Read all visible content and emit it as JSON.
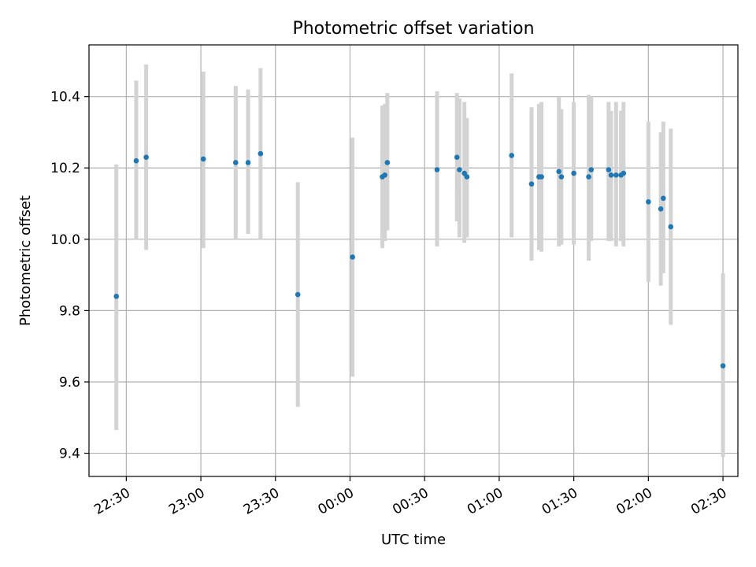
{
  "chart_data": {
    "type": "scatter",
    "title": "Photometric offset variation",
    "xlabel": "UTC time",
    "ylabel": "Photometric offset",
    "xlim": [
      "22:15",
      "02:36"
    ],
    "ylim": [
      9.335,
      10.545
    ],
    "x_ticks": [
      "22:30",
      "23:00",
      "23:30",
      "00:00",
      "00:30",
      "01:00",
      "01:30",
      "02:00",
      "02:30"
    ],
    "y_ticks": [
      "9.4",
      "9.6",
      "9.8",
      "10.0",
      "10.2",
      "10.4"
    ],
    "grid": true,
    "point_color": "#1f77b4",
    "error_color": "#d3d3d3",
    "series": [
      {
        "points": [
          {
            "x": "22:26",
            "y": 9.84,
            "lo": 9.465,
            "hi": 10.21
          },
          {
            "x": "22:34",
            "y": 10.22,
            "lo": 10.0,
            "hi": 10.445
          },
          {
            "x": "22:38",
            "y": 10.23,
            "lo": 9.97,
            "hi": 10.49
          },
          {
            "x": "23:01",
            "y": 10.225,
            "lo": 9.975,
            "hi": 10.47
          },
          {
            "x": "23:14",
            "y": 10.215,
            "lo": 10.0,
            "hi": 10.43
          },
          {
            "x": "23:19",
            "y": 10.215,
            "lo": 10.015,
            "hi": 10.42
          },
          {
            "x": "23:24",
            "y": 10.24,
            "lo": 10.0,
            "hi": 10.48
          },
          {
            "x": "23:39",
            "y": 9.845,
            "lo": 9.53,
            "hi": 10.16
          },
          {
            "x": "00:01",
            "y": 9.95,
            "lo": 9.615,
            "hi": 10.285
          },
          {
            "x": "00:13",
            "y": 10.175,
            "lo": 9.975,
            "hi": 10.375
          },
          {
            "x": "00:14",
            "y": 10.18,
            "lo": 9.995,
            "hi": 10.38
          },
          {
            "x": "00:15",
            "y": 10.215,
            "lo": 10.025,
            "hi": 10.41
          },
          {
            "x": "00:35",
            "y": 10.195,
            "lo": 9.98,
            "hi": 10.415
          },
          {
            "x": "00:43",
            "y": 10.23,
            "lo": 10.05,
            "hi": 10.41
          },
          {
            "x": "00:44",
            "y": 10.195,
            "lo": 10.005,
            "hi": 10.395
          },
          {
            "x": "00:46",
            "y": 10.185,
            "lo": 9.99,
            "hi": 10.385
          },
          {
            "x": "00:47",
            "y": 10.175,
            "lo": 10.005,
            "hi": 10.34
          },
          {
            "x": "01:05",
            "y": 10.235,
            "lo": 10.005,
            "hi": 10.465
          },
          {
            "x": "01:13",
            "y": 10.155,
            "lo": 9.94,
            "hi": 10.37
          },
          {
            "x": "01:16",
            "y": 10.175,
            "lo": 9.97,
            "hi": 10.38
          },
          {
            "x": "01:17",
            "y": 10.175,
            "lo": 9.965,
            "hi": 10.385
          },
          {
            "x": "01:24",
            "y": 10.19,
            "lo": 9.98,
            "hi": 10.4
          },
          {
            "x": "01:25",
            "y": 10.175,
            "lo": 9.985,
            "hi": 10.365
          },
          {
            "x": "01:30",
            "y": 10.185,
            "lo": 9.985,
            "hi": 10.385
          },
          {
            "x": "01:36",
            "y": 10.175,
            "lo": 9.94,
            "hi": 10.405
          },
          {
            "x": "01:37",
            "y": 10.195,
            "lo": 9.995,
            "hi": 10.4
          },
          {
            "x": "01:44",
            "y": 10.195,
            "lo": 9.995,
            "hi": 10.385
          },
          {
            "x": "01:45",
            "y": 10.18,
            "lo": 9.995,
            "hi": 10.36
          },
          {
            "x": "01:47",
            "y": 10.18,
            "lo": 9.98,
            "hi": 10.385
          },
          {
            "x": "01:49",
            "y": 10.18,
            "lo": 9.995,
            "hi": 10.36
          },
          {
            "x": "01:50",
            "y": 10.185,
            "lo": 9.98,
            "hi": 10.385
          },
          {
            "x": "02:00",
            "y": 10.105,
            "lo": 9.88,
            "hi": 10.33
          },
          {
            "x": "02:05",
            "y": 10.085,
            "lo": 9.87,
            "hi": 10.3
          },
          {
            "x": "02:06",
            "y": 10.115,
            "lo": 9.905,
            "hi": 10.33
          },
          {
            "x": "02:09",
            "y": 10.035,
            "lo": 9.76,
            "hi": 10.31
          },
          {
            "x": "02:30",
            "y": 9.645,
            "lo": 9.39,
            "hi": 9.905
          }
        ]
      }
    ]
  }
}
